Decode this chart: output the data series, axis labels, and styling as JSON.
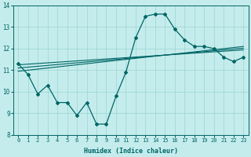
{
  "xlabel": "Humidex (Indice chaleur)",
  "bg_color": "#c5ecec",
  "grid_color": "#a0d8d8",
  "line_color": "#006666",
  "xlim": [
    -0.5,
    23.5
  ],
  "ylim": [
    8,
    14
  ],
  "yticks": [
    8,
    9,
    10,
    11,
    12,
    13,
    14
  ],
  "xticks": [
    0,
    1,
    2,
    3,
    4,
    5,
    6,
    7,
    8,
    9,
    10,
    11,
    12,
    13,
    14,
    15,
    16,
    17,
    18,
    19,
    20,
    21,
    22,
    23
  ],
  "line1_x": [
    0,
    1,
    2,
    3,
    4,
    5,
    6,
    7,
    8,
    9,
    10,
    11,
    12,
    13,
    14,
    15,
    16,
    17,
    18,
    19,
    20,
    21,
    22,
    23
  ],
  "line1_y": [
    11.3,
    10.8,
    9.9,
    10.3,
    9.5,
    9.5,
    8.9,
    9.5,
    8.5,
    8.5,
    9.8,
    10.9,
    12.5,
    13.5,
    13.6,
    13.6,
    12.9,
    12.4,
    12.1,
    12.1,
    12.0,
    11.6,
    11.4,
    11.6
  ],
  "line2_x": [
    0,
    1,
    2,
    3,
    4,
    5,
    6,
    7,
    8,
    9,
    10,
    11,
    12,
    13,
    14,
    15,
    16,
    17,
    18,
    19,
    20,
    21,
    22,
    23
  ],
  "line2_y": [
    11.25,
    11.28,
    11.31,
    11.34,
    11.37,
    11.4,
    11.43,
    11.46,
    11.49,
    11.52,
    11.55,
    11.58,
    11.61,
    11.64,
    11.67,
    11.7,
    11.73,
    11.76,
    11.79,
    11.82,
    11.85,
    11.88,
    11.91,
    11.94
  ],
  "line3_x": [
    0,
    1,
    2,
    3,
    4,
    5,
    6,
    7,
    8,
    9,
    10,
    11,
    12,
    13,
    14,
    15,
    16,
    17,
    18,
    19,
    20,
    21,
    22,
    23
  ],
  "line3_y": [
    11.1,
    11.14,
    11.18,
    11.22,
    11.26,
    11.3,
    11.34,
    11.38,
    11.42,
    11.46,
    11.5,
    11.54,
    11.58,
    11.62,
    11.66,
    11.7,
    11.74,
    11.78,
    11.82,
    11.86,
    11.9,
    11.94,
    11.98,
    12.02
  ],
  "line4_x": [
    0,
    1,
    2,
    3,
    4,
    5,
    6,
    7,
    8,
    9,
    10,
    11,
    12,
    13,
    14,
    15,
    16,
    17,
    18,
    19,
    20,
    21,
    22,
    23
  ],
  "line4_y": [
    10.95,
    11.0,
    11.05,
    11.1,
    11.15,
    11.2,
    11.25,
    11.3,
    11.35,
    11.4,
    11.45,
    11.5,
    11.55,
    11.6,
    11.65,
    11.7,
    11.75,
    11.8,
    11.85,
    11.9,
    11.95,
    12.0,
    12.05,
    12.1
  ]
}
